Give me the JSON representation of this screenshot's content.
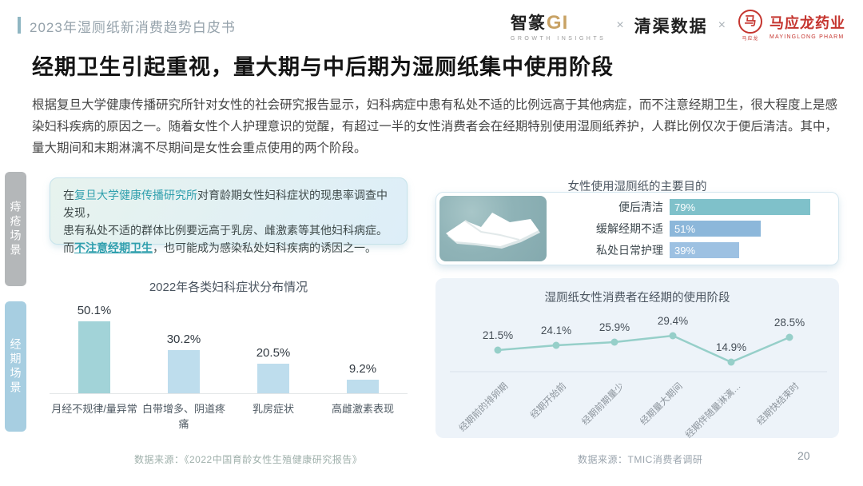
{
  "header": {
    "doc_title": "2023年湿厕纸新消费趋势白皮书",
    "logos": {
      "zhizhuan_main": "智篆",
      "zhizhuan_gi": "GI",
      "zhizhuan_sub": "GROWTH INSIGHTS",
      "cross1": "×",
      "qingqu": "清渠数据",
      "cross2": "×",
      "mayinglong_seal_glyph": "马",
      "mayinglong_seal_caption": "马应龙",
      "mayinglong_main": "马应龙药业",
      "mayinglong_sub": "MAYINGLONG PHARM"
    }
  },
  "page": {
    "title": "经期卫生引起重视，量大期与中后期为湿厕纸集中使用阶段",
    "paragraph": "根据复旦大学健康传播研究所针对女性的社会研究报告显示，妇科病症中患有私处不适的比例远高于其他病症，而不注意经期卫生，很大程度上是感染妇科疾病的原因之一。随着女性个人护理意识的觉醒，有超过一半的女性消费者会在经期特别使用湿厕纸养护，人群比例仅次于便后清洁。其中，量大期间和末期淋漓不尽期间是女性会重点使用的两个阶段。",
    "page_number": "20"
  },
  "sidebar": {
    "tabs": [
      {
        "label": "痔疮场景",
        "active": false
      },
      {
        "label": "经期场景",
        "active": true
      }
    ]
  },
  "callout": {
    "line1_prefix": "在",
    "line1_highlight": "复旦大学健康传播研究所",
    "line1_rest": "对育龄期女性妇科症状的现患率调查中发现，",
    "line2": "患有私处不适的群体比例要远高于乳房、雌激素等其他妇科病症。",
    "line3_prefix": "而",
    "line3_highlight": "不注意经期卫生",
    "line3_rest": "，也可能成为感染私处妇科疾病的诱因之一。"
  },
  "chart_data": [
    {
      "type": "bar",
      "orientation": "vertical",
      "title": "2022年各类妇科症状分布情况",
      "categories": [
        "月经不规律/量异常",
        "白带增多、阴道疼痛",
        "乳房症状",
        "高雌激素表现"
      ],
      "values": [
        50.1,
        30.2,
        20.5,
        9.2
      ],
      "unit": "%",
      "ylim": [
        0,
        60
      ],
      "grid": false,
      "value_labels": "above bars"
    },
    {
      "type": "bar",
      "orientation": "horizontal",
      "title": "女性使用湿厕纸的主要目的",
      "categories": [
        "便后清洁",
        "缓解经期不适",
        "私处日常护理"
      ],
      "values": [
        79,
        51,
        39
      ],
      "unit": "%",
      "value_labels": "inside bars"
    },
    {
      "type": "line",
      "title": "湿厕纸女性消费者在经期的使用阶段",
      "categories": [
        "经期前的排卵期",
        "经期开始前",
        "经期前期量少",
        "经期量大期间",
        "经期伴随量淋漓…",
        "经期快结束时"
      ],
      "values": [
        21.5,
        24.1,
        25.9,
        29.4,
        14.9,
        28.5
      ],
      "unit": "%",
      "value_labels": "above points",
      "x_tick_rotation": -45
    }
  ],
  "colors": {
    "bar_primary": "#a2d3d8",
    "bar_secondary": "#bedded",
    "hbar": [
      "#7fc1ca",
      "#8cb7da",
      "#9dc1e2"
    ],
    "line": "#96cfc9",
    "teal_accent": "#2f9fad",
    "brand_red": "#c5352f",
    "sidebar_inactive": "#b4b7b9",
    "sidebar_active": "#a7cee1"
  },
  "footer": {
    "source_left": "数据来源：《2022中国育龄女性生殖健康研究报告》",
    "source_right": "数据来源：TMIC消费者调研"
  }
}
